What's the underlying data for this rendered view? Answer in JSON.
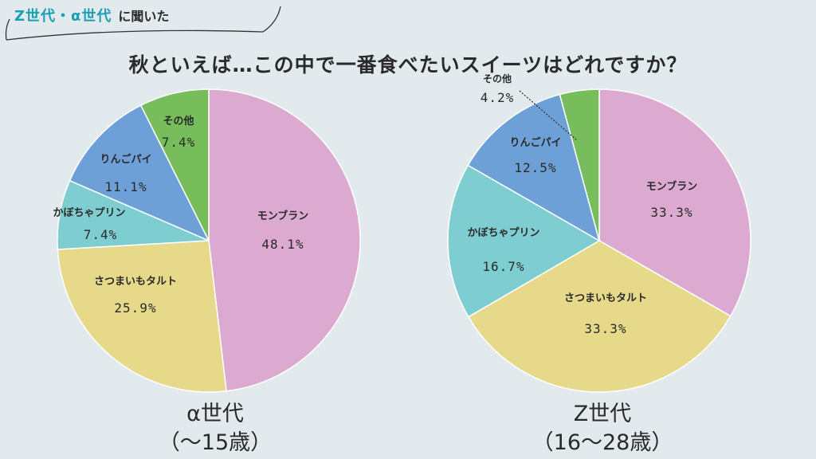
{
  "header": {
    "tag_accent": "Z世代・α世代",
    "tag_rest": "に聞いた",
    "question": "秋といえば…この中で一番食べたいスイーツはどれですか？"
  },
  "captions": [
    {
      "line1": "α世代",
      "line2": "（〜15歳）"
    },
    {
      "line1": "Z世代",
      "line2": "（16〜28歳）"
    }
  ],
  "colors": {
    "モンブラン": "#dcaad0",
    "さつまいもタルト": "#e6da8a",
    "かぼちゃプリン": "#7ecdd1",
    "りんごパイ": "#6ea0d8",
    "その他": "#78bd5b"
  },
  "chart_data": [
    {
      "type": "pie",
      "title": "α世代",
      "categories": [
        "モンブラン",
        "さつまいもタルト",
        "かぼちゃプリン",
        "りんごパイ",
        "その他"
      ],
      "values": [
        48.1,
        25.9,
        7.4,
        11.1,
        7.4
      ],
      "value_labels": [
        "48.1%",
        "25.9%",
        "7.4%",
        "11.1%",
        "7.4%"
      ]
    },
    {
      "type": "pie",
      "title": "Z世代",
      "categories": [
        "モンブラン",
        "さつまいもタルト",
        "かぼちゃプリン",
        "りんごパイ",
        "その他"
      ],
      "values": [
        33.3,
        33.3,
        16.7,
        12.5,
        4.2
      ],
      "value_labels": [
        "33.3%",
        "33.3%",
        "16.7%",
        "12.5%",
        "4.2%"
      ]
    }
  ]
}
